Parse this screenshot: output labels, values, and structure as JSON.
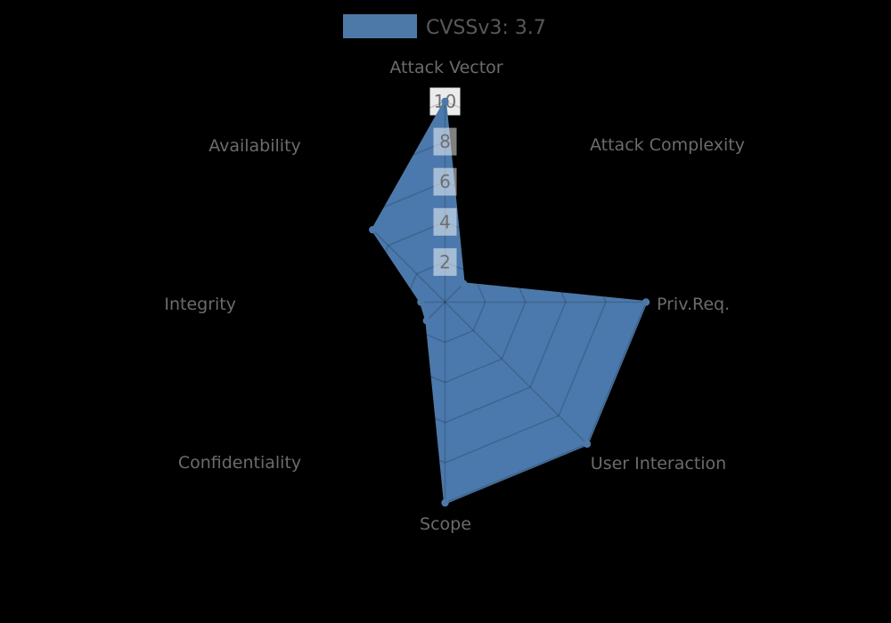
{
  "page": {
    "background": "#000000"
  },
  "legend": {
    "label": "CVSSv3: 3.7",
    "swatch_color": "#4d79a8"
  },
  "chart_data": {
    "type": "radar",
    "title": "",
    "categories": [
      "Attack Vector",
      "Attack Complexity",
      "Priv.Req.",
      "User Interaction",
      "Scope",
      "Confidentiality",
      "Integrity",
      "Availability"
    ],
    "series": [
      {
        "name": "CVSSv3: 3.7",
        "values": [
          10,
          1.3,
          10,
          10,
          10,
          1.3,
          1.2,
          5.1
        ]
      }
    ],
    "ticks": [
      2,
      4,
      6,
      8,
      10
    ],
    "rlim": [
      0,
      10
    ],
    "axis_start": "top",
    "direction": "clockwise",
    "grid": "polygon-web with 8 spokes, rings at each tick, visible only over filled area",
    "legend_position": "top-center",
    "colors": {
      "series_fill": "#4b79ad",
      "series_border": "#4d79a8",
      "point_marker": "#4d79a8",
      "grid_line": "rgba(0,0,0,0.16)",
      "tick_backdrop_over_fill": "rgba(255,255,255,0.5)",
      "tick_backdrop_top": "rgba(255,255,255,0.92)",
      "tick_text": "#6f6f6f",
      "axis_label": "#6b6b6b",
      "legend_text": "#57585a",
      "background": "#000000"
    }
  }
}
